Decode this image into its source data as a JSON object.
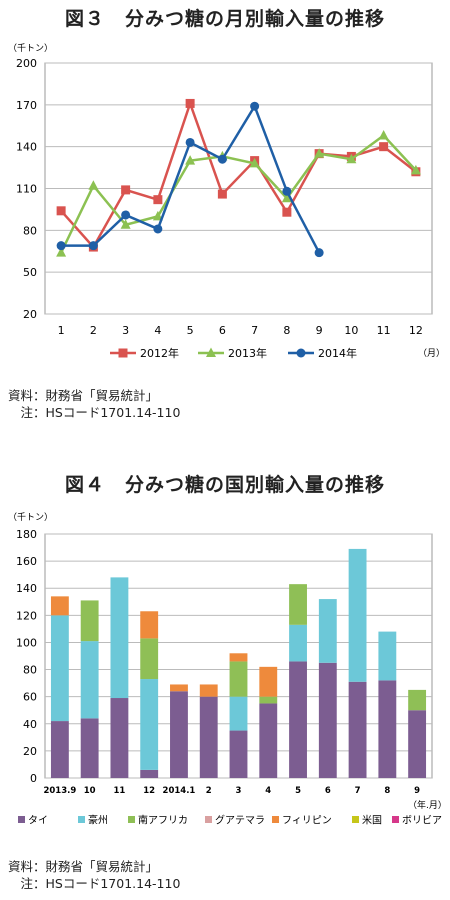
{
  "chart_data": [
    {
      "type": "line",
      "title": "図３　分みつ糖の月別輸入量の推移",
      "ylabel": "（千トン）",
      "xlabel": "（月）",
      "categories": [
        "1",
        "2",
        "3",
        "4",
        "5",
        "6",
        "7",
        "8",
        "9",
        "10",
        "11",
        "12"
      ],
      "yticks": [
        "200",
        "170",
        "140",
        "110",
        "80",
        "50",
        "20"
      ],
      "ylim": [
        20,
        200
      ],
      "grid": true,
      "legend_position": "bottom",
      "series": [
        {
          "name": "2012年",
          "color": "#d9534f",
          "marker": "square",
          "values": [
            94,
            68,
            109,
            102,
            171,
            106,
            130,
            93,
            135,
            133,
            140,
            122
          ]
        },
        {
          "name": "2013年",
          "color": "#8cc152",
          "marker": "triangle",
          "values": [
            64,
            112,
            84,
            90,
            130,
            133,
            128,
            103,
            135,
            131,
            148,
            123
          ]
        },
        {
          "name": "2014年",
          "color": "#1f5fa6",
          "marker": "circle",
          "values": [
            69,
            69,
            91,
            81,
            143,
            131,
            169,
            108,
            64,
            null,
            null,
            null
          ]
        }
      ],
      "source": "資料：財務省「貿易統計」\n　注：HSコード1701.14-110"
    },
    {
      "type": "bar",
      "stacked": true,
      "title": "図４　分みつ糖の国別輸入量の推移",
      "ylabel": "（千トン）",
      "xlabel": "（年.月）",
      "categories": [
        "2013.9",
        "10",
        "11",
        "12",
        "2014.1",
        "2",
        "3",
        "4",
        "5",
        "6",
        "7",
        "8",
        "9"
      ],
      "yticks": [
        "180",
        "160",
        "140",
        "120",
        "100",
        "80",
        "60",
        "40",
        "20",
        "0"
      ],
      "ylim": [
        0,
        180
      ],
      "grid": true,
      "legend_position": "bottom",
      "series": [
        {
          "name": "タイ",
          "color": "#7c5d91",
          "values": [
            42,
            44,
            59,
            6,
            64,
            60,
            35,
            55,
            86,
            85,
            71,
            72,
            50
          ]
        },
        {
          "name": "豪州",
          "color": "#6cc8d8",
          "values": [
            78,
            57,
            89,
            67,
            0,
            0,
            25,
            0,
            27,
            47,
            98,
            36,
            0
          ]
        },
        {
          "name": "南アフリカ",
          "color": "#8fbf56",
          "values": [
            0,
            30,
            0,
            30,
            0,
            0,
            26,
            5,
            30,
            0,
            0,
            0,
            15
          ]
        },
        {
          "name": "グアテマラ",
          "color": "#d9a0a0",
          "values": [
            0,
            0,
            0,
            0,
            0,
            0,
            0,
            0,
            0,
            0,
            0,
            0,
            0
          ]
        },
        {
          "name": "フィリピン",
          "color": "#ee8a3c",
          "values": [
            14,
            0,
            0,
            20,
            5,
            9,
            6,
            22,
            0,
            0,
            0,
            0,
            0
          ]
        },
        {
          "name": "米国",
          "color": "#c6c61a",
          "values": [
            0,
            0,
            0,
            0,
            0,
            0,
            0,
            0,
            0,
            0,
            0,
            0,
            0
          ]
        },
        {
          "name": "ボリビア",
          "color": "#d6388a",
          "values": [
            0,
            0,
            0,
            0,
            0,
            0,
            0,
            0,
            0,
            0,
            0,
            0,
            0
          ]
        }
      ],
      "source": "資料：財務省「貿易統計」\n　注：HSコード1701.14-110"
    }
  ]
}
